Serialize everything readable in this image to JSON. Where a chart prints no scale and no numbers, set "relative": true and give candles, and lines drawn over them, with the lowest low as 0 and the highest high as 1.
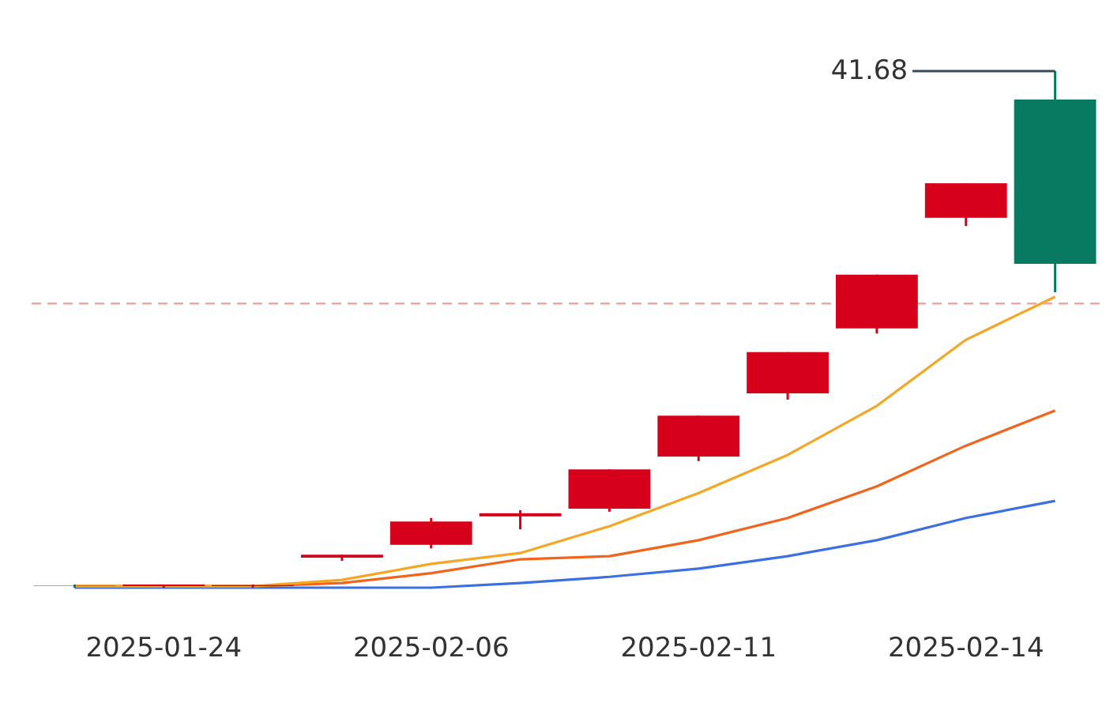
{
  "chart_data": {
    "type": "candlestick",
    "relative": true,
    "categories": [
      null,
      "2025-01-24",
      null,
      null,
      "2025-02-06",
      null,
      null,
      "2025-02-11",
      null,
      null,
      "2025-02-14",
      null
    ],
    "ohlc": [
      [
        0.003,
        0.006,
        0.0,
        0.004
      ],
      [
        0.003,
        0.006,
        0.0,
        0.006
      ],
      [
        0.003,
        0.006,
        0.0,
        0.005
      ],
      [
        0.058,
        0.064,
        0.052,
        0.064
      ],
      [
        0.083,
        0.135,
        0.076,
        0.128
      ],
      [
        0.138,
        0.15,
        0.113,
        0.144
      ],
      [
        0.153,
        0.229,
        0.147,
        0.229
      ],
      [
        0.254,
        0.333,
        0.245,
        0.333
      ],
      [
        0.376,
        0.456,
        0.364,
        0.456
      ],
      [
        0.502,
        0.606,
        0.492,
        0.606
      ],
      [
        0.716,
        0.783,
        0.7,
        0.783
      ],
      [
        0.945,
        1.0,
        0.572,
        0.627
      ]
    ],
    "colors": [
      "#087a61",
      "#d7001a",
      "#d7001a",
      "#d7001a",
      "#d7001a",
      "#d7001a",
      "#d7001a",
      "#d7001a",
      "#d7001a",
      "#d7001a",
      "#d7001a",
      "#087a61"
    ],
    "series": [
      {
        "type": "line",
        "color": "#f5a623",
        "values": [
          0.003,
          0.003,
          0.003,
          0.015,
          0.046,
          0.067,
          0.119,
          0.183,
          0.257,
          0.352,
          0.48,
          0.563
        ]
      },
      {
        "type": "line",
        "color": "#f2641b",
        "values": [
          0.003,
          0.003,
          0.003,
          0.009,
          0.028,
          0.055,
          0.061,
          0.092,
          0.135,
          0.196,
          0.275,
          0.343
        ]
      },
      {
        "type": "line",
        "color": "#3c6fe0",
        "values": [
          0.0,
          0.0,
          0.0,
          0.0,
          0.0,
          0.009,
          0.021,
          0.037,
          0.061,
          0.092,
          0.135,
          0.168
        ]
      }
    ],
    "ref_lines": [
      {
        "axis": "y",
        "value": 0.55,
        "color": "#f4a3a3",
        "line_style": "dashed"
      }
    ],
    "annotations": [
      "41.68"
    ],
    "grid": false
  }
}
